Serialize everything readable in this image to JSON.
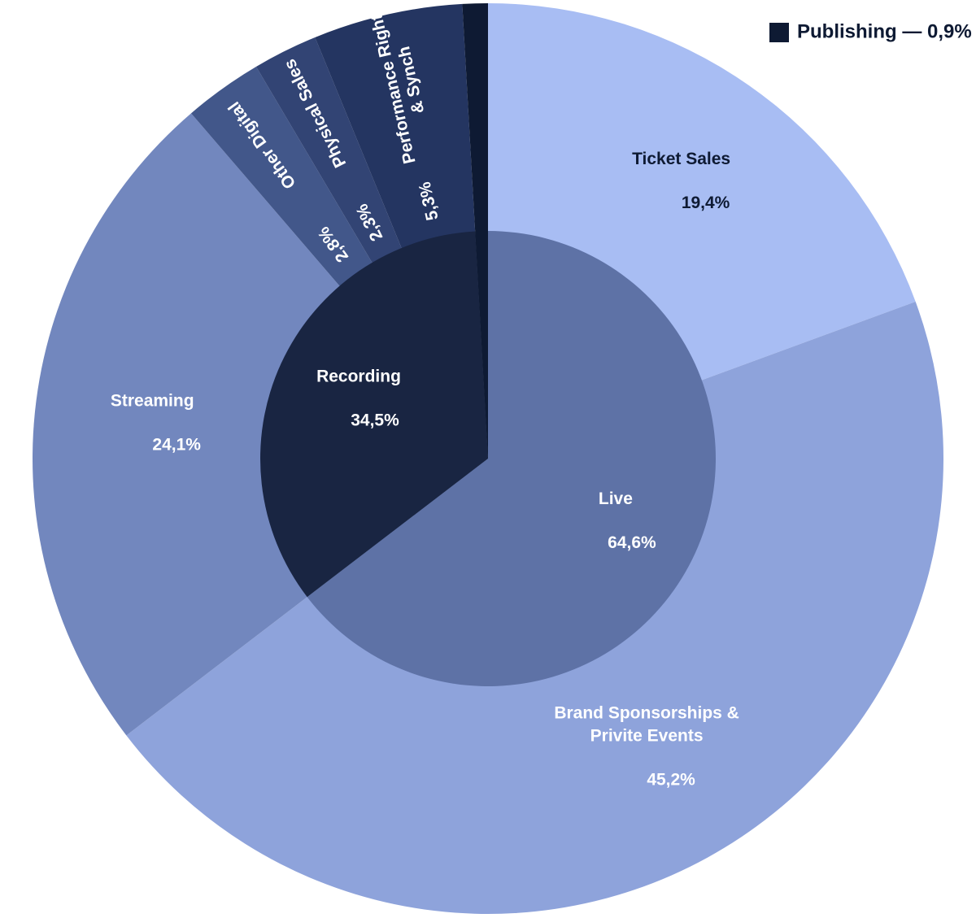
{
  "chart_data": {
    "type": "pie",
    "subtype": "sunburst",
    "inner": [
      {
        "name": "Live",
        "value": 64.6,
        "value_label": "64,6%",
        "color": "#5e72a6",
        "text_color": "#ffffff"
      },
      {
        "name": "Recording",
        "value": 34.5,
        "value_label": "34,5%",
        "color": "#192542",
        "text_color": "#ffffff"
      },
      {
        "name": "",
        "value": 0.9,
        "value_label": "",
        "color": "#0e1a33",
        "text_color": "#ffffff"
      }
    ],
    "outer": [
      {
        "name": "Ticket Sales",
        "value": 19.4,
        "value_label": "19,4%",
        "color": "#a8bdf3",
        "text_color": "#0e1a33"
      },
      {
        "name": "Brand Sponsorships & Privite Events",
        "name_lines": [
          "Brand Sponsorships &",
          "Privite Events"
        ],
        "value": 45.2,
        "value_label": "45,2%",
        "color": "#8ea3db",
        "text_color": "#ffffff"
      },
      {
        "name": "Streaming",
        "value": 24.1,
        "value_label": "24,1%",
        "color": "#7287be",
        "text_color": "#ffffff"
      },
      {
        "name": "Other Digital",
        "value": 2.8,
        "value_label": "2,8%",
        "color": "#42578a",
        "text_color": "#ffffff"
      },
      {
        "name": "Physical Sales",
        "value": 2.3,
        "value_label": "2,3%",
        "color": "#324474",
        "text_color": "#ffffff"
      },
      {
        "name": "Performance Rights & Synch",
        "name_lines": [
          "Performance Rights",
          "& Synch"
        ],
        "value": 5.3,
        "value_label": "5,3%",
        "color": "#243561",
        "text_color": "#ffffff"
      },
      {
        "name": "Publishing",
        "value": 0.9,
        "value_label": "0,9%",
        "color": "#0e1a33",
        "text_color": "#ffffff"
      }
    ],
    "legend": [
      {
        "label": "Publishing — 0,9%",
        "color": "#0e1a33"
      }
    ],
    "legend_position": "top-right",
    "title": ""
  }
}
